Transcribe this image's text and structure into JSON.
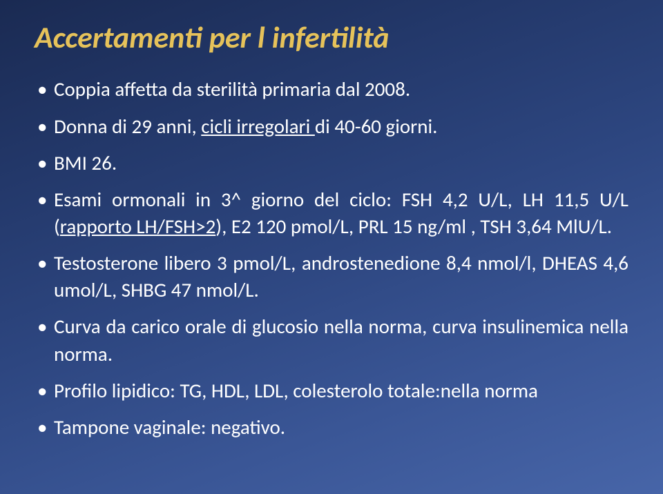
{
  "title": "Accertamenti per l infertilità",
  "bullets": [
    {
      "pre": "Coppia affetta da sterilità primaria dal 2008.",
      "mid": "",
      "post": "",
      "justify": false
    },
    {
      "pre": "Donna di 29 anni, ",
      "mid": "cicli irregolari ",
      "post": "di 40-60 giorni.",
      "justify": false
    },
    {
      "pre": "BMI 26.",
      "mid": "",
      "post": "",
      "justify": false
    },
    {
      "pre": "Esami ormonali in 3^ giorno del ciclo: FSH 4,2 U/L, LH 11,5 U/L (",
      "mid": "rapporto LH/FSH>2",
      "post": "), E2 120 pmol/L, PRL 15 ng/ml , TSH 3,64 MlU/L.",
      "justify": true
    },
    {
      "pre": "Testosterone libero 3 pmol/L, androstenedione 8,4 nmol/l, DHEAS 4,6 umol/L, SHBG 47 nmol/L.",
      "mid": "",
      "post": "",
      "justify": true
    },
    {
      "pre": "Curva da carico orale di glucosio nella norma, curva insulinemica nella norma.",
      "mid": "",
      "post": "",
      "justify": true
    },
    {
      "pre": "Profilo lipidico: TG, HDL, LDL, colesterolo totale:nella norma",
      "mid": "",
      "post": "",
      "justify": false
    },
    {
      "pre": "Tampone vaginale: negativo.",
      "mid": "",
      "post": "",
      "justify": false
    }
  ]
}
